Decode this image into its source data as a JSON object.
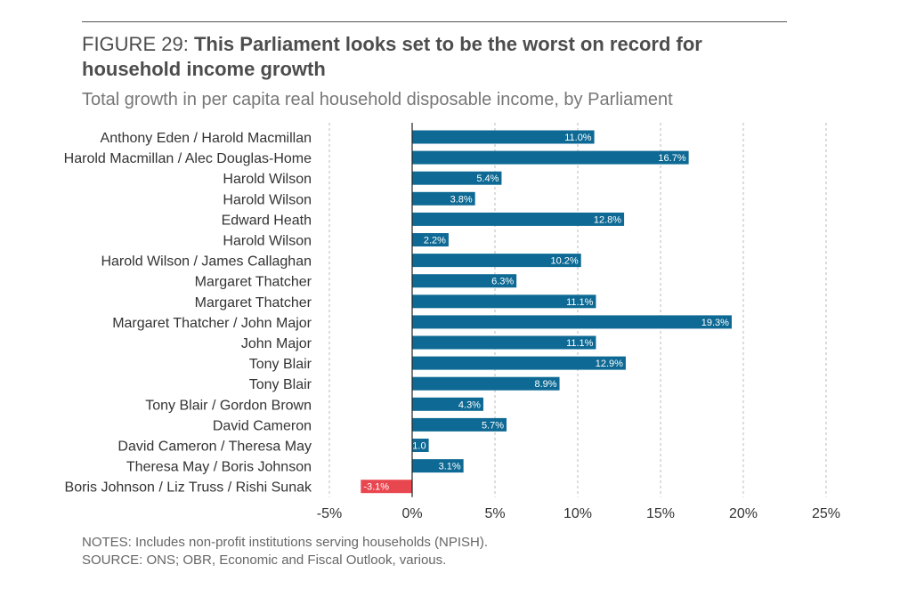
{
  "header": {
    "figure_label": "FIGURE 29:",
    "title": "This Parliament looks set to be the worst on record for household income growth",
    "subtitle": "Total growth in per capita real household disposable income, by Parliament"
  },
  "footer": {
    "notes": "NOTES: Includes non-profit institutions serving households (NPISH).",
    "source": "SOURCE: ONS; OBR, Economic and Fiscal Outlook, various."
  },
  "chart_data": {
    "type": "bar",
    "orientation": "horizontal",
    "categories": [
      "Anthony Eden / Harold Macmillan",
      "Harold Macmillan / Alec Douglas-Home",
      "Harold Wilson",
      "Harold Wilson",
      "Edward Heath",
      "Harold Wilson",
      "Harold Wilson / James Callaghan",
      "Margaret Thatcher",
      "Margaret Thatcher",
      "Margaret Thatcher / John Major",
      "John Major",
      "Tony Blair",
      "Tony Blair",
      "Tony Blair / Gordon Brown",
      "David Cameron",
      "David Cameron / Theresa May",
      "Theresa May / Boris Johnson",
      "Boris Johnson / Liz Truss / Rishi Sunak"
    ],
    "values": [
      11.0,
      16.7,
      5.4,
      3.8,
      12.8,
      2.2,
      10.2,
      6.3,
      11.1,
      19.3,
      11.1,
      12.9,
      8.9,
      4.3,
      5.7,
      1.0,
      3.1,
      -3.1
    ],
    "data_labels": [
      "11.0%",
      "16.7%",
      "5.4%",
      "3.8%",
      "12.8%",
      "2.2%",
      "10.2%",
      "6.3%",
      "11.1%",
      "19.3%",
      "11.1%",
      "12.9%",
      "8.9%",
      "4.3%",
      "5.7%",
      "1.0",
      "3.1%",
      "-3.1%"
    ],
    "xlim": [
      -5,
      25
    ],
    "xticks": [
      -5,
      0,
      5,
      10,
      15,
      20,
      25
    ],
    "xtick_labels": [
      "-5%",
      "0%",
      "5%",
      "10%",
      "15%",
      "20%",
      "25%"
    ],
    "grid": "vertical dashed",
    "colors": {
      "positive": "#0e6a94",
      "negative": "#e8474f",
      "grid": "#bbbbbb",
      "axis": "#222222"
    }
  }
}
